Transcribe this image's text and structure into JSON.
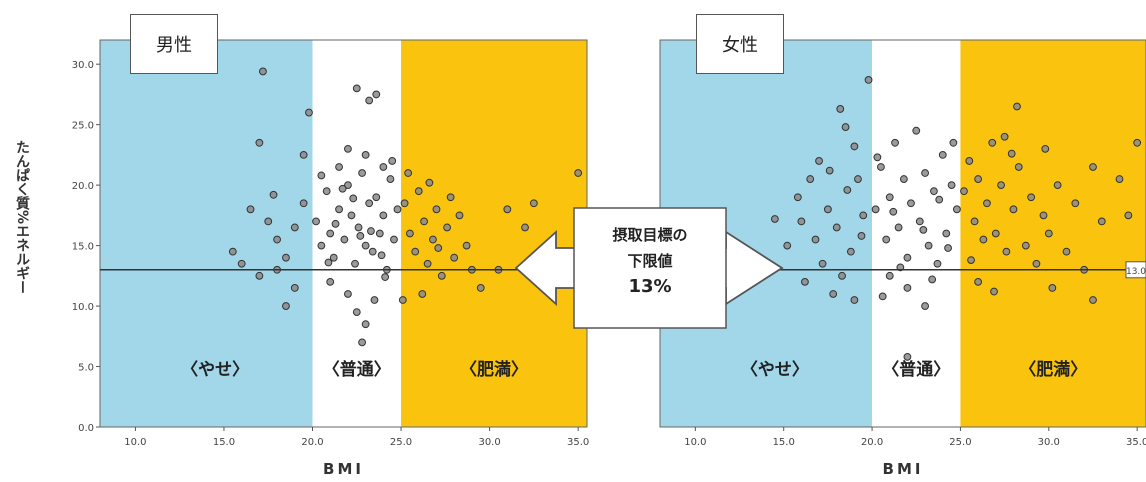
{
  "ylabel": "たんぱく質%エネルギー",
  "callout": {
    "line1": "摂取目標の",
    "line2": "下限値",
    "line3": "13%"
  },
  "ref_line_label": "13.0",
  "zone_labels": {
    "underweight": "〈やせ〉",
    "normal": "〈普通〉",
    "obese": "〈肥満〉"
  },
  "colors": {
    "underweight": "#a2d7ea",
    "normal": "#ffffff",
    "obese": "#fac40e",
    "point": "#8a8a8a",
    "point_stroke": "#333333"
  },
  "chart_data": [
    {
      "type": "scatter",
      "title": "男性",
      "xlabel": "BMI",
      "ylabel": "たんぱく質%エネルギー",
      "xlim": [
        8,
        35.5
      ],
      "ylim": [
        0,
        32
      ],
      "xticks": [
        "10.0",
        "15.0",
        "20.0",
        "25.0",
        "30.0",
        "35.0"
      ],
      "yticks": [
        "0.0",
        "5.0",
        "10.0",
        "15.0",
        "20.0",
        "25.0",
        "30.0"
      ],
      "bands": [
        [
          8,
          20
        ],
        [
          20,
          25
        ],
        [
          25,
          35.5
        ]
      ],
      "reference_y": 13,
      "points": [
        [
          17.2,
          29.4
        ],
        [
          19.8,
          26.0
        ],
        [
          17.0,
          23.5
        ],
        [
          19.5,
          22.5
        ],
        [
          22.5,
          28.0
        ],
        [
          23.2,
          27.0
        ],
        [
          23.6,
          27.5
        ],
        [
          16.5,
          18.0
        ],
        [
          17.5,
          17.0
        ],
        [
          18.0,
          15.5
        ],
        [
          18.5,
          14.0
        ],
        [
          19.0,
          16.5
        ],
        [
          19.5,
          18.5
        ],
        [
          16.0,
          13.5
        ],
        [
          17.0,
          12.5
        ],
        [
          18.0,
          13.0
        ],
        [
          19.0,
          11.5
        ],
        [
          18.5,
          10.0
        ],
        [
          15.5,
          14.5
        ],
        [
          17.8,
          19.2
        ],
        [
          20.2,
          17.0
        ],
        [
          20.5,
          15.0
        ],
        [
          20.8,
          19.5
        ],
        [
          21.0,
          16.0
        ],
        [
          21.2,
          14.0
        ],
        [
          21.5,
          18.0
        ],
        [
          21.8,
          15.5
        ],
        [
          22.0,
          20.0
        ],
        [
          22.2,
          17.5
        ],
        [
          22.4,
          13.5
        ],
        [
          22.6,
          16.5
        ],
        [
          22.8,
          21.0
        ],
        [
          23.0,
          15.0
        ],
        [
          23.2,
          18.5
        ],
        [
          23.4,
          14.5
        ],
        [
          23.6,
          19.0
        ],
        [
          23.8,
          16.0
        ],
        [
          24.0,
          17.5
        ],
        [
          24.2,
          13.0
        ],
        [
          24.4,
          20.5
        ],
        [
          24.6,
          15.5
        ],
        [
          24.8,
          18.0
        ],
        [
          21.0,
          12.0
        ],
        [
          22.0,
          11.0
        ],
        [
          22.5,
          9.5
        ],
        [
          23.0,
          8.5
        ],
        [
          22.8,
          7.0
        ],
        [
          23.5,
          10.5
        ],
        [
          21.5,
          21.5
        ],
        [
          22.0,
          23.0
        ],
        [
          23.0,
          22.5
        ],
        [
          24.0,
          21.5
        ],
        [
          20.5,
          20.8
        ],
        [
          24.5,
          22.0
        ],
        [
          21.3,
          16.8
        ],
        [
          22.7,
          15.8
        ],
        [
          23.9,
          14.2
        ],
        [
          20.9,
          13.6
        ],
        [
          24.1,
          12.4
        ],
        [
          22.3,
          18.9
        ],
        [
          23.3,
          16.2
        ],
        [
          21.7,
          19.7
        ],
        [
          25.2,
          18.5
        ],
        [
          25.5,
          16.0
        ],
        [
          25.8,
          14.5
        ],
        [
          26.0,
          19.5
        ],
        [
          26.3,
          17.0
        ],
        [
          26.5,
          13.5
        ],
        [
          26.8,
          15.5
        ],
        [
          27.0,
          18.0
        ],
        [
          27.3,
          12.5
        ],
        [
          27.6,
          16.5
        ],
        [
          28.0,
          14.0
        ],
        [
          28.3,
          17.5
        ],
        [
          28.7,
          15.0
        ],
        [
          29.0,
          13.0
        ],
        [
          25.4,
          21.0
        ],
        [
          26.2,
          11.0
        ],
        [
          25.1,
          10.5
        ],
        [
          27.8,
          19.0
        ],
        [
          29.5,
          11.5
        ],
        [
          26.6,
          20.2
        ],
        [
          27.1,
          14.8
        ],
        [
          32.0,
          16.5
        ],
        [
          32.5,
          18.5
        ],
        [
          35.0,
          21.0
        ],
        [
          31.0,
          18.0
        ],
        [
          33.0,
          14.0
        ],
        [
          30.5,
          13.0
        ]
      ]
    },
    {
      "type": "scatter",
      "title": "女性",
      "xlabel": "BMI",
      "ylabel": "",
      "xlim": [
        8,
        35.5
      ],
      "ylim": [
        0,
        32
      ],
      "xticks": [
        "10.0",
        "15.0",
        "20.0",
        "25.0",
        "30.0",
        "35.0"
      ],
      "yticks": [],
      "bands": [
        [
          8,
          20
        ],
        [
          20,
          25
        ],
        [
          25,
          35.5
        ]
      ],
      "reference_y": 13,
      "points": [
        [
          19.8,
          28.7
        ],
        [
          18.2,
          26.3
        ],
        [
          18.5,
          24.8
        ],
        [
          19.0,
          23.2
        ],
        [
          17.0,
          22.0
        ],
        [
          16.5,
          20.5
        ],
        [
          15.8,
          19.0
        ],
        [
          16.0,
          17.0
        ],
        [
          16.8,
          15.5
        ],
        [
          17.5,
          18.0
        ],
        [
          18.0,
          16.5
        ],
        [
          18.8,
          14.5
        ],
        [
          19.2,
          20.5
        ],
        [
          19.5,
          17.5
        ],
        [
          17.2,
          13.5
        ],
        [
          18.3,
          12.5
        ],
        [
          19.0,
          10.5
        ],
        [
          17.8,
          11.0
        ],
        [
          15.2,
          15.0
        ],
        [
          16.2,
          12.0
        ],
        [
          18.6,
          19.6
        ],
        [
          19.4,
          15.8
        ],
        [
          14.5,
          17.2
        ],
        [
          17.6,
          21.2
        ],
        [
          20.2,
          18.0
        ],
        [
          20.5,
          21.5
        ],
        [
          20.8,
          15.5
        ],
        [
          21.0,
          19.0
        ],
        [
          21.3,
          23.5
        ],
        [
          21.5,
          16.5
        ],
        [
          21.8,
          20.5
        ],
        [
          22.0,
          14.0
        ],
        [
          22.2,
          18.5
        ],
        [
          22.5,
          24.5
        ],
        [
          22.7,
          17.0
        ],
        [
          23.0,
          21.0
        ],
        [
          23.2,
          15.0
        ],
        [
          23.5,
          19.5
        ],
        [
          23.7,
          13.5
        ],
        [
          24.0,
          22.5
        ],
        [
          24.2,
          16.0
        ],
        [
          24.5,
          20.0
        ],
        [
          24.8,
          18.0
        ],
        [
          21.0,
          12.5
        ],
        [
          22.0,
          11.5
        ],
        [
          23.0,
          10.0
        ],
        [
          20.6,
          10.8
        ],
        [
          22.0,
          5.8
        ],
        [
          24.6,
          23.5
        ],
        [
          20.3,
          22.3
        ],
        [
          21.6,
          13.2
        ],
        [
          23.4,
          12.2
        ],
        [
          22.9,
          16.3
        ],
        [
          21.2,
          17.8
        ],
        [
          24.3,
          14.8
        ],
        [
          23.8,
          18.8
        ],
        [
          25.2,
          19.5
        ],
        [
          25.5,
          22.0
        ],
        [
          25.8,
          17.0
        ],
        [
          26.0,
          20.5
        ],
        [
          26.3,
          15.5
        ],
        [
          26.5,
          18.5
        ],
        [
          26.8,
          23.5
        ],
        [
          27.0,
          16.0
        ],
        [
          27.3,
          20.0
        ],
        [
          27.6,
          14.5
        ],
        [
          28.0,
          18.0
        ],
        [
          28.3,
          21.5
        ],
        [
          28.7,
          15.0
        ],
        [
          29.0,
          19.0
        ],
        [
          29.3,
          13.5
        ],
        [
          29.7,
          17.5
        ],
        [
          30.0,
          16.0
        ],
        [
          30.5,
          20.0
        ],
        [
          31.0,
          14.5
        ],
        [
          31.5,
          18.5
        ],
        [
          32.0,
          13.0
        ],
        [
          32.5,
          21.5
        ],
        [
          33.0,
          17.0
        ],
        [
          34.0,
          20.5
        ],
        [
          34.5,
          17.5
        ],
        [
          35.0,
          23.5
        ],
        [
          28.2,
          26.5
        ],
        [
          27.5,
          24.0
        ],
        [
          26.0,
          12.0
        ],
        [
          30.2,
          11.5
        ],
        [
          32.5,
          10.5
        ],
        [
          25.6,
          13.8
        ],
        [
          27.9,
          22.6
        ],
        [
          29.8,
          23.0
        ],
        [
          26.9,
          11.2
        ]
      ]
    }
  ]
}
